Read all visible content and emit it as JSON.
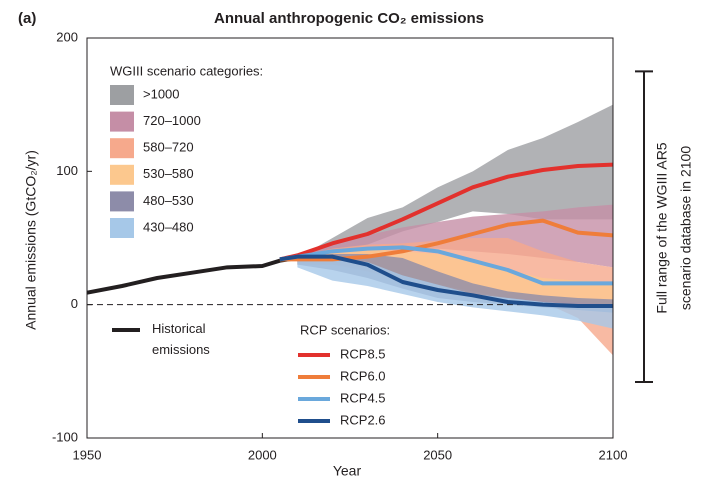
{
  "chart_data": {
    "type": "line",
    "panel_label": "(a)",
    "title": "Annual anthropogenic CO₂ emissions",
    "x_label": "Year",
    "y_label": "Annual emissions (GtCO₂/yr)",
    "xlim": [
      1950,
      2100
    ],
    "xticks": [
      1950,
      2000,
      2050,
      2100
    ],
    "ylim": [
      -100,
      200
    ],
    "yticks": [
      -100,
      0,
      100,
      200
    ],
    "reference_line": 0,
    "bands_title": "WGIII scenario categories:",
    "bands_x": [
      2010,
      2020,
      2030,
      2040,
      2050,
      2060,
      2070,
      2080,
      2090,
      2100
    ],
    "bands": [
      {
        "name": ">1000",
        "color": "#9d9fa2",
        "lower": [
          33,
          38,
          45,
          55,
          62,
          70,
          68,
          64,
          64,
          64
        ],
        "upper": [
          35,
          50,
          65,
          73,
          88,
          100,
          116,
          125,
          137,
          150
        ]
      },
      {
        "name": "720–1000",
        "color": "#c58ea6",
        "lower": [
          32,
          35,
          38,
          40,
          42,
          40,
          38,
          35,
          32,
          28
        ],
        "upper": [
          36,
          45,
          52,
          58,
          62,
          66,
          68,
          70,
          73,
          75
        ]
      },
      {
        "name": "580–720",
        "color": "#f6a98c",
        "lower": [
          30,
          30,
          28,
          22,
          15,
          10,
          5,
          2,
          -10,
          -38
        ],
        "upper": [
          36,
          42,
          45,
          46,
          48,
          50,
          50,
          40,
          32,
          28
        ]
      },
      {
        "name": "530–580",
        "color": "#fcc88e",
        "lower": [
          30,
          30,
          25,
          18,
          12,
          8,
          5,
          3,
          2,
          0
        ],
        "upper": [
          36,
          40,
          42,
          40,
          38,
          32,
          26,
          20,
          18,
          17
        ]
      },
      {
        "name": "480–530",
        "color": "#8d8ca9",
        "lower": [
          30,
          26,
          20,
          12,
          5,
          2,
          0,
          -2,
          -4,
          -6
        ],
        "upper": [
          36,
          38,
          38,
          35,
          25,
          16,
          10,
          7,
          5,
          4
        ]
      },
      {
        "name": "430–480",
        "color": "#a6c8e8",
        "lower": [
          28,
          18,
          14,
          8,
          2,
          -2,
          -5,
          -8,
          -12,
          -18
        ],
        "upper": [
          35,
          34,
          32,
          22,
          15,
          8,
          5,
          2,
          0,
          -2
        ]
      }
    ],
    "series": [
      {
        "name": "Historical emissions",
        "color": "#231f20",
        "x": [
          1950,
          1960,
          1970,
          1980,
          1990,
          2000,
          2005,
          2010
        ],
        "values": [
          9,
          14,
          20,
          24,
          28,
          29,
          33,
          35
        ]
      },
      {
        "name": "RCP8.5",
        "color": "#e2312d",
        "x": [
          2005,
          2010,
          2020,
          2030,
          2040,
          2050,
          2060,
          2070,
          2080,
          2090,
          2100
        ],
        "values": [
          34,
          37,
          46,
          53,
          64,
          76,
          88,
          96,
          101,
          104,
          105
        ]
      },
      {
        "name": "RCP6.0",
        "color": "#ef7d3a",
        "x": [
          2005,
          2010,
          2020,
          2030,
          2040,
          2050,
          2060,
          2070,
          2080,
          2090,
          2100
        ],
        "values": [
          34,
          34,
          34,
          36,
          40,
          46,
          53,
          60,
          63,
          54,
          52
        ]
      },
      {
        "name": "RCP4.5",
        "color": "#6aa8dc",
        "x": [
          2005,
          2010,
          2020,
          2030,
          2040,
          2050,
          2060,
          2070,
          2080,
          2090,
          2100
        ],
        "values": [
          34,
          36,
          40,
          42,
          43,
          40,
          33,
          26,
          16,
          16,
          16
        ]
      },
      {
        "name": "RCP2.6",
        "color": "#1f4e8c",
        "x": [
          2005,
          2010,
          2020,
          2030,
          2040,
          2050,
          2060,
          2070,
          2080,
          2090,
          2100
        ],
        "values": [
          34,
          36,
          36,
          30,
          17,
          11,
          7,
          2,
          0,
          -1,
          -1
        ]
      }
    ],
    "rcp_legend_title": "RCP scenarios:",
    "bracket_label": [
      "Full range of the WGIII AR5",
      "scenario database in 2100"
    ],
    "bracket_range": [
      -58,
      175
    ]
  }
}
